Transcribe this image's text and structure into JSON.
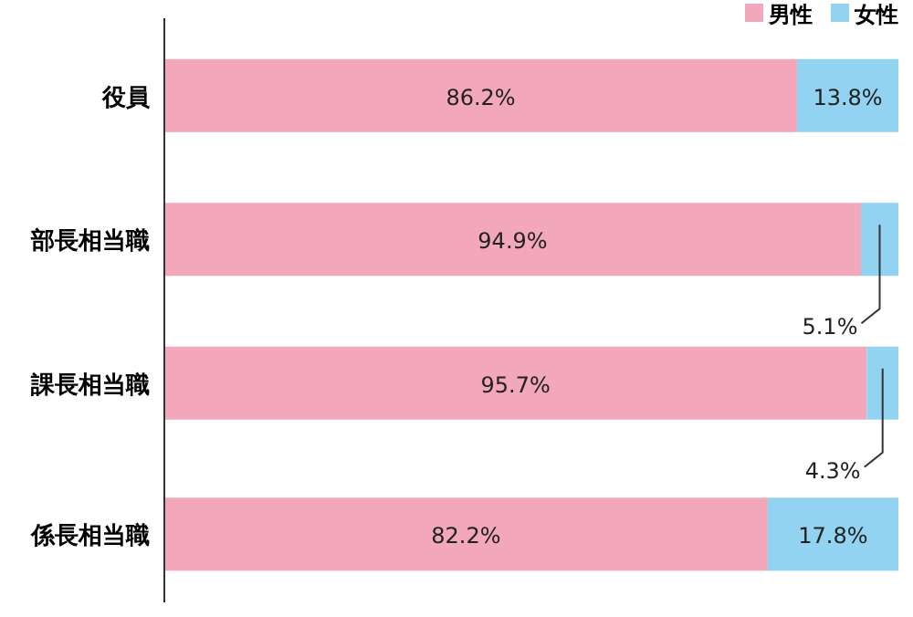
{
  "chart_data": {
    "type": "bar",
    "orientation": "horizontal",
    "stacked": true,
    "legend": "top right",
    "categories": [
      "役員",
      "部長相当職",
      "課長相当職",
      "係長相当職"
    ],
    "series": [
      {
        "name": "男性",
        "color": "#f2a7ba",
        "values": [
          86.2,
          94.9,
          95.7,
          82.2
        ],
        "value_labels": [
          "86.2%",
          "94.9%",
          "95.7%",
          "82.2%"
        ]
      },
      {
        "name": "女性",
        "color": "#93d3f2",
        "values": [
          13.8,
          5.1,
          4.3,
          17.8
        ],
        "value_labels": [
          "13.8%",
          "5.1%",
          "4.3%",
          "17.8%"
        ]
      }
    ]
  }
}
